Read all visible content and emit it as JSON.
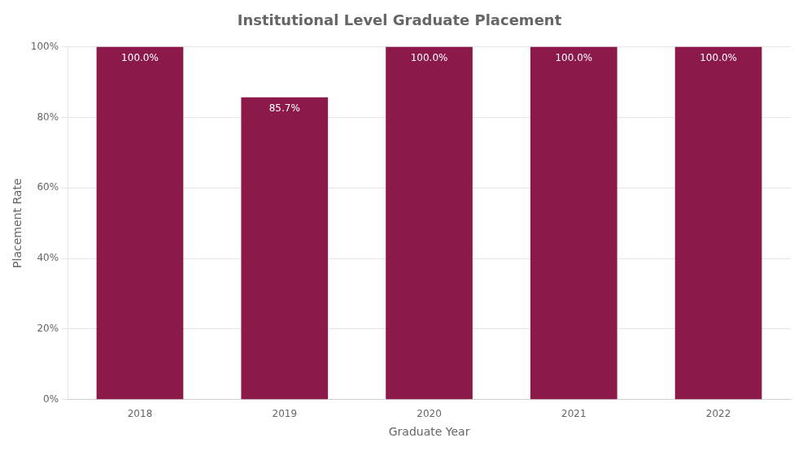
{
  "chart_data": {
    "type": "bar",
    "title": "Institutional Level Graduate Placement",
    "xlabel": "Graduate Year",
    "ylabel": "Placement Rate",
    "categories": [
      "2018",
      "2019",
      "2020",
      "2021",
      "2022"
    ],
    "values": [
      100.0,
      85.7,
      100.0,
      100.0,
      100.0
    ],
    "value_labels": [
      "100.0%",
      "85.7%",
      "100.0%",
      "100.0%",
      "100.0%"
    ],
    "data_labels": true,
    "color": "#8B1A4A",
    "ylim": [
      0,
      100
    ],
    "yticks": [
      {
        "value": 0,
        "label": "0%"
      },
      {
        "value": 20,
        "label": "20%"
      },
      {
        "value": 40,
        "label": "40%"
      },
      {
        "value": 60,
        "label": "60%"
      },
      {
        "value": 80,
        "label": "80%"
      },
      {
        "value": 100,
        "label": "100%"
      }
    ],
    "grid": true
  }
}
